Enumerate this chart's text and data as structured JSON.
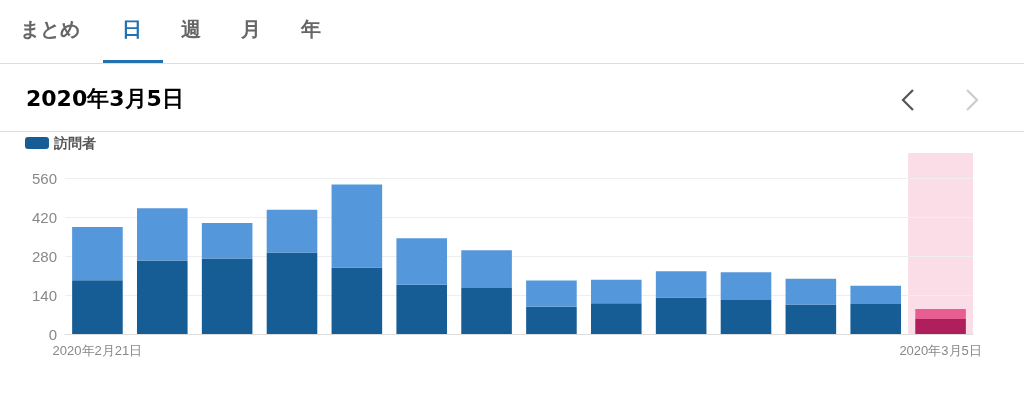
{
  "chart_data": {
    "type": "bar",
    "title": "2020年3月5日",
    "annotations": [
      "まとめ",
      "日",
      "週",
      "月",
      "年"
    ],
    "categories": [
      "2020年2月21日",
      null,
      null,
      null,
      null,
      null,
      null,
      null,
      null,
      null,
      null,
      null,
      null,
      "2020年3月5日"
    ],
    "series": [
      {
        "name": "訪問者",
        "color": "#165d96",
        "colors": [
          "#165d96",
          "#165d96",
          "#165d96",
          "#165d96",
          "#165d96",
          "#165d96",
          "#165d96",
          "#165d96",
          "#165d96",
          "#165d96",
          "#165d96",
          "#165d96",
          "#165d96",
          "#ae1f5c"
        ],
        "values": [
          193,
          264,
          271,
          293,
          239,
          177,
          165,
          98,
          110,
          131,
          122,
          106,
          108,
          54
        ]
      },
      {
        "color": "#5497db",
        "colors": [
          "#5497db",
          "#5497db",
          "#5497db",
          "#5497db",
          "#5497db",
          "#5497db",
          "#5497db",
          "#5497db",
          "#5497db",
          "#5497db",
          "#5497db",
          "#5497db",
          "#5497db",
          "#e85e93"
        ],
        "values": [
          191,
          188,
          128,
          153,
          298,
          167,
          136,
          94,
          85,
          94,
          100,
          92,
          65,
          36
        ]
      }
    ],
    "stacked": true,
    "ylim": [
      0,
      650
    ],
    "yticks": [
      0,
      140,
      280,
      420,
      560
    ],
    "grid": "y",
    "legend": "top left",
    "bands": [
      {
        "axis": "x",
        "from": "2020年3月5日",
        "to": "2020年3月5日",
        "color": "#fbdde7"
      }
    ]
  }
}
